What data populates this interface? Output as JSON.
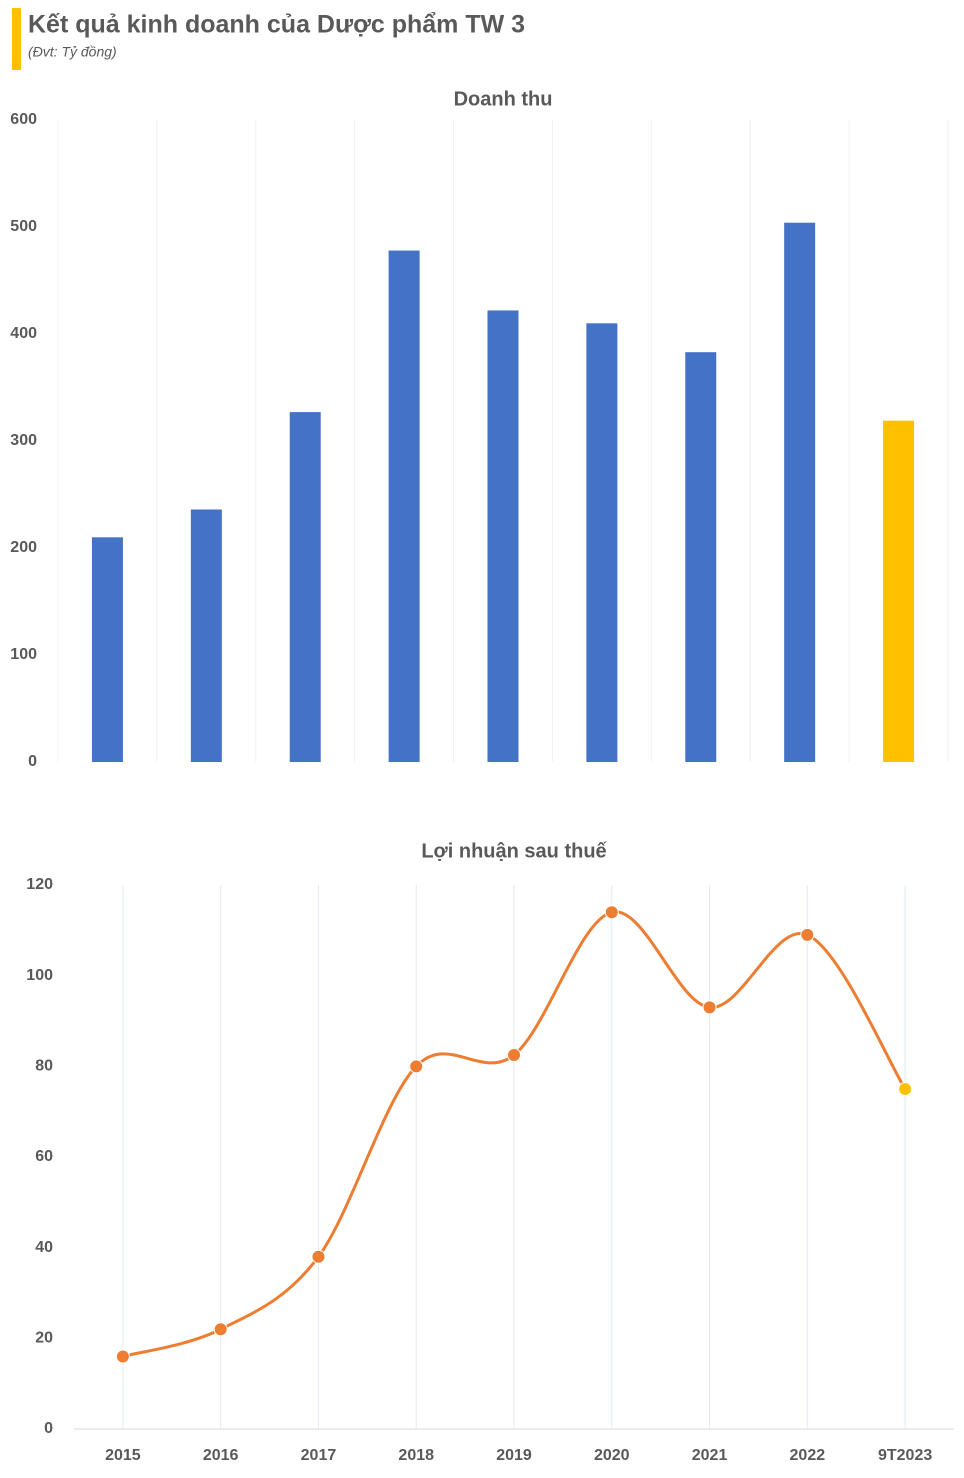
{
  "header": {
    "title": "Kết quả kinh doanh của Dược phẩm TW 3",
    "subtitle": "(Đvt: Tỷ đồng)"
  },
  "chart_data": [
    {
      "type": "bar",
      "title": "Doanh thu",
      "categories": [
        null,
        null,
        null,
        null,
        null,
        null,
        null,
        null,
        null
      ],
      "values": [
        210,
        236,
        327,
        478,
        422,
        410,
        383,
        504,
        319
      ],
      "colors": [
        "#4472c4",
        "#4472c4",
        "#4472c4",
        "#4472c4",
        "#4472c4",
        "#4472c4",
        "#4472c4",
        "#4472c4",
        "#ffc000"
      ],
      "ylim": [
        0,
        600
      ],
      "yticks": [
        0,
        100,
        200,
        300,
        400,
        500,
        600
      ],
      "grid": false,
      "xgrid": true
    },
    {
      "type": "line",
      "title": "Lợi nhuận sau thuế",
      "categories": [
        "2015",
        "2016",
        "2017",
        "2018",
        "2019",
        "2020",
        "2021",
        "2022",
        "9T2023"
      ],
      "values": [
        16,
        22,
        38,
        80,
        82.5,
        114,
        93,
        109,
        75
      ],
      "color": "#ed7d31",
      "smooth": true,
      "marker_colors": [
        "#ed7d31",
        "#ed7d31",
        "#ed7d31",
        "#ed7d31",
        "#ed7d31",
        "#ed7d31",
        "#ed7d31",
        "#ed7d31",
        "#ffc000"
      ],
      "ylim": [
        0,
        120
      ],
      "yticks": [
        0,
        20,
        40,
        60,
        80,
        100,
        120
      ],
      "grid": false,
      "xgrid": true
    }
  ]
}
